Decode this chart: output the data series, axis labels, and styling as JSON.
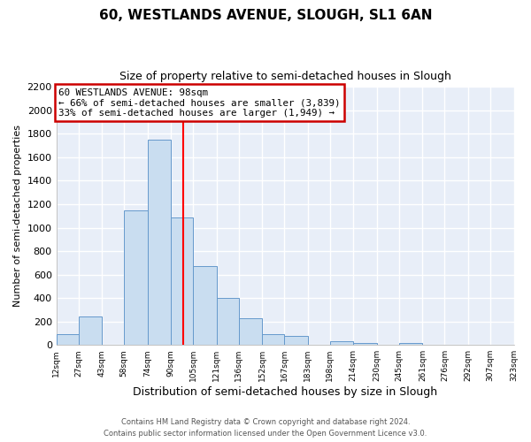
{
  "title": "60, WESTLANDS AVENUE, SLOUGH, SL1 6AN",
  "subtitle": "Size of property relative to semi-detached houses in Slough",
  "xlabel": "Distribution of semi-detached houses by size in Slough",
  "ylabel": "Number of semi-detached properties",
  "bin_edges": [
    12,
    27,
    43,
    58,
    74,
    90,
    105,
    121,
    136,
    152,
    167,
    183,
    198,
    214,
    230,
    245,
    261,
    276,
    292,
    307,
    323
  ],
  "bin_counts": [
    90,
    240,
    0,
    1150,
    1750,
    1090,
    670,
    400,
    230,
    90,
    75,
    0,
    30,
    20,
    0,
    20,
    0,
    0,
    0,
    0
  ],
  "bar_color": "#c9ddf0",
  "bar_edge_color": "#6699cc",
  "vline_x": 98,
  "vline_color": "red",
  "annotation_title": "60 WESTLANDS AVENUE: 98sqm",
  "annotation_line1": "← 66% of semi-detached houses are smaller (3,839)",
  "annotation_line2": "33% of semi-detached houses are larger (1,949) →",
  "annotation_box_color": "white",
  "annotation_box_edge": "#cc0000",
  "ylim": [
    0,
    2200
  ],
  "yticks": [
    0,
    200,
    400,
    600,
    800,
    1000,
    1200,
    1400,
    1600,
    1800,
    2000,
    2200
  ],
  "tick_labels": [
    "12sqm",
    "27sqm",
    "43sqm",
    "58sqm",
    "74sqm",
    "90sqm",
    "105sqm",
    "121sqm",
    "136sqm",
    "152sqm",
    "167sqm",
    "183sqm",
    "198sqm",
    "214sqm",
    "230sqm",
    "245sqm",
    "261sqm",
    "276sqm",
    "292sqm",
    "307sqm",
    "323sqm"
  ],
  "footer1": "Contains HM Land Registry data © Crown copyright and database right 2024.",
  "footer2": "Contains public sector information licensed under the Open Government Licence v3.0.",
  "bg_color": "#ffffff",
  "plot_bg_color": "#e8eef8",
  "grid_color": "#ffffff"
}
